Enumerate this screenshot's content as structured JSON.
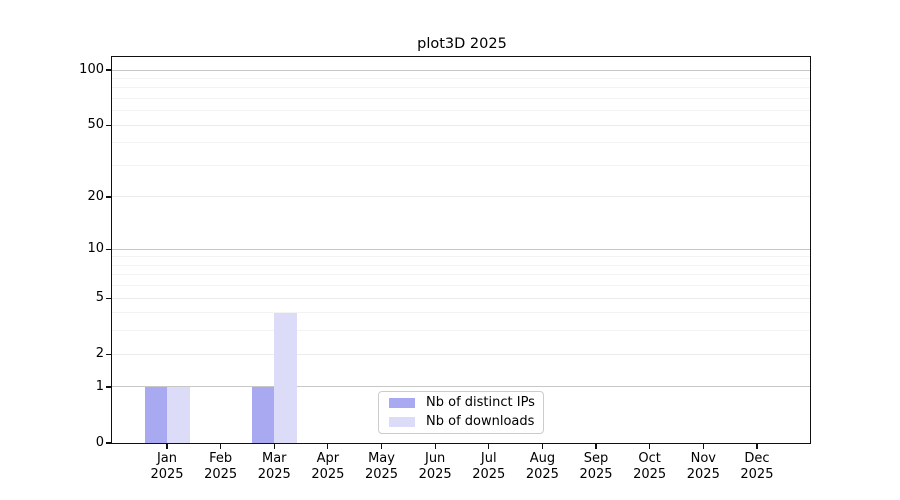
{
  "chart_data": {
    "type": "bar",
    "title": "plot3D 2025",
    "categories": [
      "Jan",
      "Feb",
      "Mar",
      "Apr",
      "May",
      "Jun",
      "Jul",
      "Aug",
      "Sep",
      "Oct",
      "Nov",
      "Dec"
    ],
    "year_label": "2025",
    "series": [
      {
        "name": "Nb of distinct IPs",
        "color": "#a9a9f2",
        "values": [
          1,
          0,
          1,
          0,
          0,
          0,
          0,
          0,
          0,
          0,
          0,
          0
        ]
      },
      {
        "name": "Nb of downloads",
        "color": "#dcdcf8",
        "values": [
          1,
          0,
          4,
          0,
          0,
          0,
          0,
          0,
          0,
          0,
          0,
          0
        ]
      }
    ],
    "xlabel": "",
    "ylabel": "",
    "y_ticks": [
      0,
      1,
      2,
      5,
      10,
      20,
      50,
      100
    ],
    "y_minor_gridlines": [
      3,
      4,
      6,
      7,
      8,
      9,
      30,
      40,
      60,
      70,
      80,
      90
    ],
    "y_power_gridlines": [
      1,
      10,
      100
    ],
    "y_scale": "log10(1+x)",
    "ylim": [
      0,
      118
    ],
    "grid": true,
    "legend_position": "lower center"
  },
  "colors": {
    "spine": "#101010",
    "grid_power": "#c7c7c7",
    "grid_major": "#ebebeb",
    "grid_minor": "#f3f3f3",
    "background": "#ffffff"
  }
}
